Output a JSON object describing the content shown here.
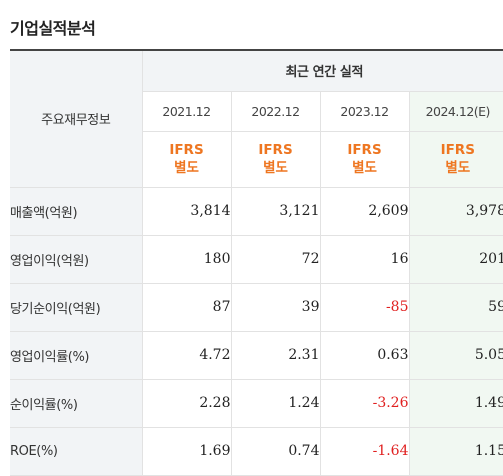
{
  "section_title": "기업실적분석",
  "table": {
    "header_label": "주요재무정보",
    "group_label": "최근 연간 실적",
    "years": [
      "2021.12",
      "2022.12",
      "2023.12",
      "2024.12(E)"
    ],
    "basis": [
      {
        "line1": "IFRS",
        "line2": "별도"
      },
      {
        "line1": "IFRS",
        "line2": "별도"
      },
      {
        "line1": "IFRS",
        "line2": "별도"
      },
      {
        "line1": "IFRS",
        "line2": "별도"
      }
    ],
    "rows": [
      {
        "label": "매출액(억원)",
        "values": [
          "3,814",
          "3,121",
          "2,609",
          "3,978"
        ]
      },
      {
        "label": "영업이익(억원)",
        "values": [
          "180",
          "72",
          "16",
          "201"
        ]
      },
      {
        "label": "당기순이익(억원)",
        "values": [
          "87",
          "39",
          "-85",
          "59"
        ]
      },
      {
        "label": "영업이익률(%)",
        "values": [
          "4.72",
          "2.31",
          "0.63",
          "5.05"
        ]
      },
      {
        "label": "순이익률(%)",
        "values": [
          "2.28",
          "1.24",
          "-3.26",
          "1.49"
        ]
      },
      {
        "label": "ROE(%)",
        "values": [
          "1.69",
          "0.74",
          "-1.64",
          "1.15"
        ]
      }
    ],
    "colors": {
      "basis": "#ee7621",
      "negative": "#e02020",
      "estimate_bg": "#f1f8f2"
    }
  }
}
